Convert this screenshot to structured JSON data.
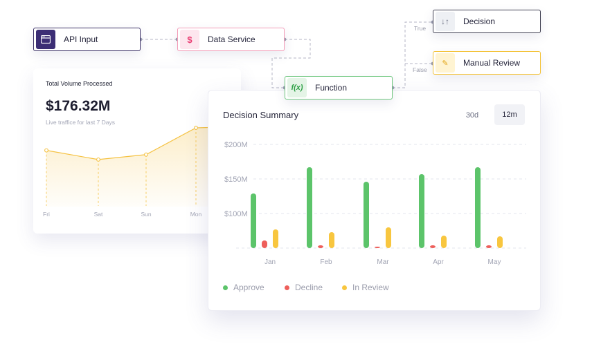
{
  "flow": {
    "api_input": {
      "label": "API Input",
      "icon": "browser-window-icon"
    },
    "data_service": {
      "label": "Data Service",
      "icon": "dollar-icon",
      "icon_glyph": "$"
    },
    "function": {
      "label": "Function",
      "icon": "function-icon",
      "icon_glyph": "f(x)"
    },
    "decision": {
      "label": "Decision",
      "icon": "sort-arrows-icon",
      "icon_glyph": "↓↑"
    },
    "manual_review": {
      "label": "Manual Review",
      "icon": "pencil-icon",
      "icon_glyph": "✎"
    },
    "branch_true": "True",
    "branch_false": "False"
  },
  "volume": {
    "title": "Total Volume Processed",
    "amount": "$176.32M",
    "subtitle": "Live traffice for last 7 Days",
    "chart_data": {
      "type": "area",
      "categories": [
        "Fri",
        "Sat",
        "Sun",
        "Mon"
      ],
      "values": [
        0.68,
        0.55,
        0.62,
        1.0
      ],
      "color": "#f5c242"
    }
  },
  "summary": {
    "title": "Decision Summary",
    "range_30d": "30d",
    "range_12m": "12m",
    "legend": {
      "approve": "Approve",
      "decline": "Decline",
      "review": "In Review"
    },
    "chart_data": {
      "type": "bar",
      "categories": [
        "Jan",
        "Feb",
        "Mar",
        "Apr",
        "May"
      ],
      "y_ticks": [
        "$200M",
        "$150M",
        "$100M"
      ],
      "ylim": [
        50,
        200
      ],
      "series": [
        {
          "name": "Approve",
          "color": "#5cc46a",
          "values": [
            129,
            167,
            146,
            157,
            167
          ]
        },
        {
          "name": "Decline",
          "color": "#ee5f5b",
          "values": [
            61,
            54,
            52,
            54,
            54
          ]
        },
        {
          "name": "In Review",
          "color": "#f8c63f",
          "values": [
            77,
            73,
            80,
            68,
            67
          ]
        }
      ]
    }
  }
}
